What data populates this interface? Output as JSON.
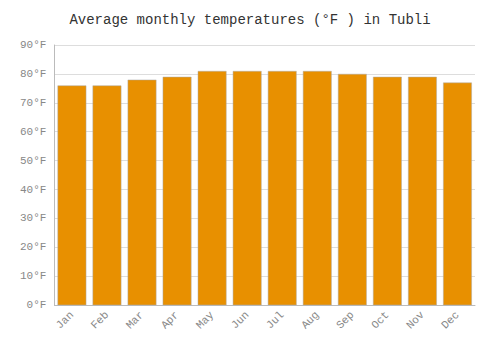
{
  "chart_data": {
    "type": "bar",
    "title": "Average monthly temperatures (°F ) in Tubli",
    "categories": [
      "Jan",
      "Feb",
      "Mar",
      "Apr",
      "May",
      "Jun",
      "Jul",
      "Aug",
      "Sep",
      "Oct",
      "Nov",
      "Dec"
    ],
    "values": [
      76,
      76,
      78,
      79,
      81,
      81,
      81,
      81,
      80,
      79,
      79,
      77
    ],
    "color": "#E89000",
    "ylim": [
      0,
      90
    ],
    "yticks": [
      {
        "value": 0,
        "label": "0°F"
      },
      {
        "value": 10,
        "label": "10°F"
      },
      {
        "value": 20,
        "label": "20°F"
      },
      {
        "value": 30,
        "label": "30°F"
      },
      {
        "value": 40,
        "label": "40°F"
      },
      {
        "value": 50,
        "label": "50°F"
      },
      {
        "value": 60,
        "label": "60°F"
      },
      {
        "value": 70,
        "label": "70°F"
      },
      {
        "value": 80,
        "label": "80°F"
      },
      {
        "value": 90,
        "label": "90°F"
      }
    ],
    "grid": true
  }
}
